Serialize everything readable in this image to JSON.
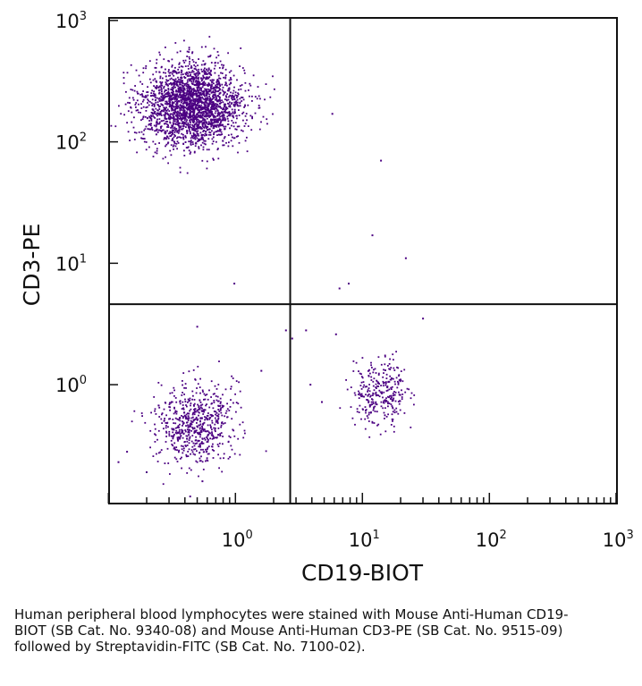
{
  "chart_data": {
    "type": "scatter",
    "subtype": "flow-cytometry-quadrant-dot-plot",
    "xlabel": "CD19-BIOT",
    "ylabel": "CD3-PE",
    "xscale": "log",
    "yscale": "log",
    "xlim": [
      0.1,
      1000
    ],
    "ylim": [
      0.1,
      1000
    ],
    "x_ticks": [
      {
        "base": "10",
        "exp": "0",
        "value": 1
      },
      {
        "base": "10",
        "exp": "1",
        "value": 10
      },
      {
        "base": "10",
        "exp": "2",
        "value": 100
      },
      {
        "base": "10",
        "exp": "3",
        "value": 1000
      }
    ],
    "y_ticks": [
      {
        "base": "10",
        "exp": "0",
        "value": 1
      },
      {
        "base": "10",
        "exp": "1",
        "value": 10
      },
      {
        "base": "10",
        "exp": "2",
        "value": 100
      },
      {
        "base": "10",
        "exp": "3",
        "value": 1000
      }
    ],
    "quadrant_gates": {
      "x": 2.7,
      "y": 4.6
    },
    "grid": false,
    "legend": "none",
    "point_color": "#4b0082",
    "populations": [
      {
        "x_center": 0.46,
        "y_center": 200,
        "x_spread_decades": 0.2,
        "y_spread_decades": 0.17,
        "count": 2400
      },
      {
        "x_center": 0.48,
        "y_center": 0.48,
        "x_spread_decades": 0.15,
        "y_spread_decades": 0.17,
        "count": 650
      },
      {
        "x_center": 14,
        "y_center": 0.85,
        "x_spread_decades": 0.11,
        "y_spread_decades": 0.13,
        "count": 300
      }
    ],
    "points": [
      {
        "x": 5.8,
        "y": 170
      },
      {
        "x": 14,
        "y": 70
      },
      {
        "x": 12,
        "y": 17
      },
      {
        "x": 22,
        "y": 11
      },
      {
        "x": 7.8,
        "y": 6.8
      },
      {
        "x": 6.6,
        "y": 6.2
      },
      {
        "x": 0.98,
        "y": 6.8
      },
      {
        "x": 2.5,
        "y": 2.8
      },
      {
        "x": 2.8,
        "y": 2.4
      },
      {
        "x": 3.6,
        "y": 2.8
      },
      {
        "x": 6.2,
        "y": 2.6
      },
      {
        "x": 30,
        "y": 3.5
      },
      {
        "x": 3.9,
        "y": 1.0
      },
      {
        "x": 4.8,
        "y": 0.72
      },
      {
        "x": 1.6,
        "y": 1.3
      },
      {
        "x": 0.14,
        "y": 0.28
      },
      {
        "x": 0.12,
        "y": 0.23
      },
      {
        "x": 0.2,
        "y": 0.19
      },
      {
        "x": 0.44,
        "y": 0.12
      },
      {
        "x": 0.55,
        "y": 0.16
      },
      {
        "x": 0.5,
        "y": 3.0
      }
    ]
  },
  "caption": "Human peripheral blood lymphocytes were stained with Mouse Anti-Human CD19-BIOT (SB Cat. No. 9340-08) and Mouse Anti-Human CD3-PE (SB Cat. No. 9515-09) followed by Streptavidin-FITC (SB Cat. No. 7100-02)."
}
